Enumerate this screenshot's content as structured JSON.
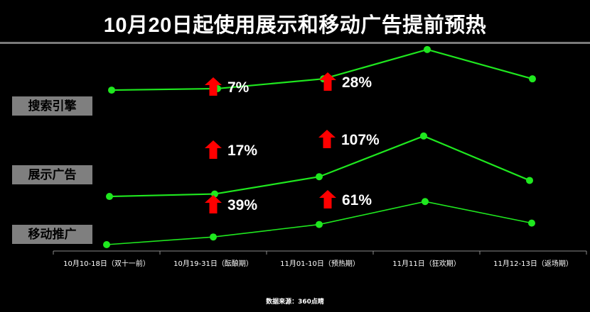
{
  "title": "10月20日起使用展示和移动广告提前预热",
  "source_note": "数据来源：360点睛",
  "colors": {
    "line": "#1fe81f",
    "arrow": "#ff0000",
    "label_bg": "#7f7f7f",
    "background": "#000000"
  },
  "chart_data": {
    "type": "line",
    "categories": [
      "10月10-18日（双十一前）",
      "10月19-31日（酝酿期）",
      "11月01-10日（预热期）",
      "11月11日（狂欢期）",
      "11月12-13日（返场期）"
    ],
    "series": [
      {
        "name": "搜索引擎",
        "values": [
          0.82,
          0.84,
          0.97,
          1.36,
          0.97
        ],
        "increase_labels": [
          "7%",
          "28%"
        ]
      },
      {
        "name": "展示广告",
        "values": [
          0.62,
          0.66,
          0.94,
          1.6,
          0.88
        ],
        "increase_labels": [
          "17%",
          "107%"
        ]
      },
      {
        "name": "移动推广",
        "values": [
          0.5,
          0.61,
          0.79,
          1.12,
          0.81
        ],
        "increase_labels": [
          "39%",
          "61%"
        ]
      }
    ],
    "increase_positions": [
      "10月19-31日（酝酿期）",
      "11月01-10日（预热期）"
    ],
    "y_axis_visible": false,
    "grid": false,
    "legend": "left"
  }
}
